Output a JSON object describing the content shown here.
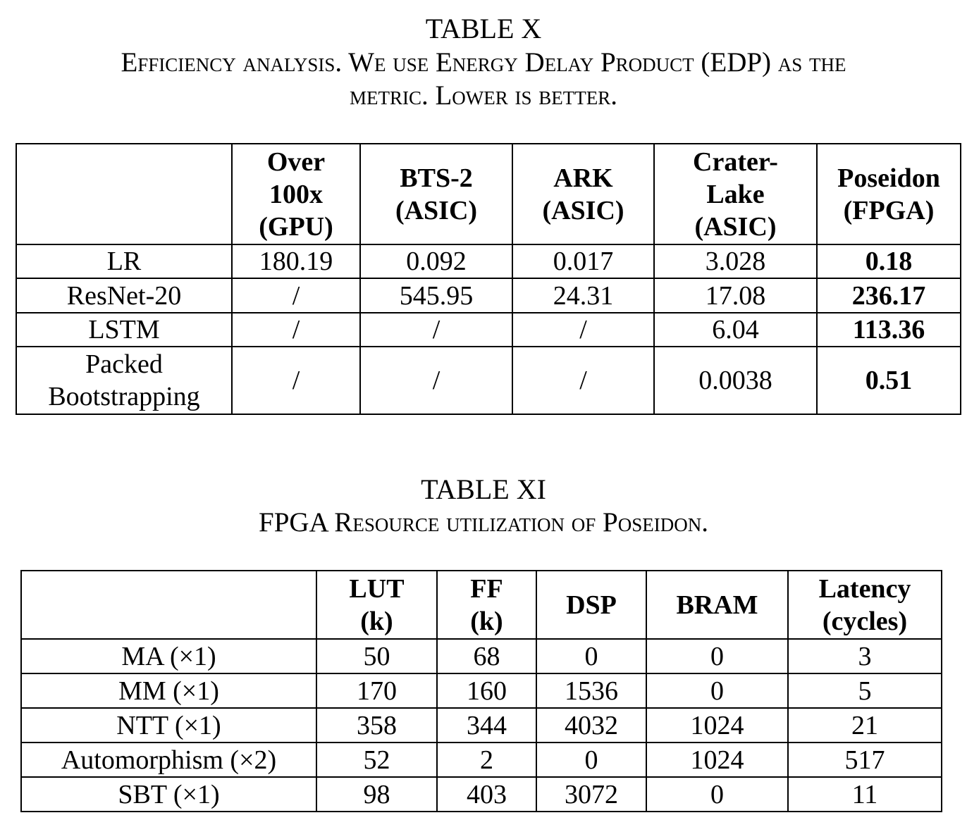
{
  "table_x": {
    "number": "TABLE X",
    "caption_line1": "Efficiency analysis. We use Energy Delay Product (EDP) as the",
    "caption_line2": "metric. Lower is better.",
    "headers": [
      [
        "Over",
        "100x",
        "(GPU)"
      ],
      [
        "BTS-2",
        "(ASIC)"
      ],
      [
        "ARK",
        "(ASIC)"
      ],
      [
        "Crater-",
        "Lake",
        "(ASIC)"
      ],
      [
        "Poseidon",
        "(FPGA)"
      ]
    ],
    "rows": [
      {
        "label": [
          "LR"
        ],
        "cells": [
          "180.19",
          "0.092",
          "0.017",
          "3.028",
          "0.18"
        ]
      },
      {
        "label": [
          "ResNet-20"
        ],
        "cells": [
          "/",
          "545.95",
          "24.31",
          "17.08",
          "236.17"
        ]
      },
      {
        "label": [
          "LSTM"
        ],
        "cells": [
          "/",
          "/",
          "/",
          "6.04",
          "113.36"
        ]
      },
      {
        "label": [
          "Packed",
          "Bootstrapping"
        ],
        "cells": [
          "/",
          "/",
          "/",
          "0.0038",
          "0.51"
        ]
      }
    ]
  },
  "table_xi": {
    "number": "TABLE XI",
    "caption_line1": "FPGA Resource utilization of Poseidon.",
    "headers": [
      [
        "LUT",
        "(k)"
      ],
      [
        "FF",
        "(k)"
      ],
      [
        "DSP"
      ],
      [
        "BRAM"
      ],
      [
        "Latency",
        "(cycles)"
      ]
    ],
    "rows": [
      {
        "label": "MA (×1)",
        "cells": [
          "50",
          "68",
          "0",
          "0",
          "3"
        ]
      },
      {
        "label": "MM (×1)",
        "cells": [
          "170",
          "160",
          "1536",
          "0",
          "5"
        ]
      },
      {
        "label": "NTT (×1)",
        "cells": [
          "358",
          "344",
          "4032",
          "1024",
          "21"
        ]
      },
      {
        "label": "Automorphism (×2)",
        "cells": [
          "52",
          "2",
          "0",
          "1024",
          "517"
        ]
      },
      {
        "label": "SBT (×1)",
        "cells": [
          "98",
          "403",
          "3072",
          "0",
          "11"
        ]
      }
    ]
  }
}
